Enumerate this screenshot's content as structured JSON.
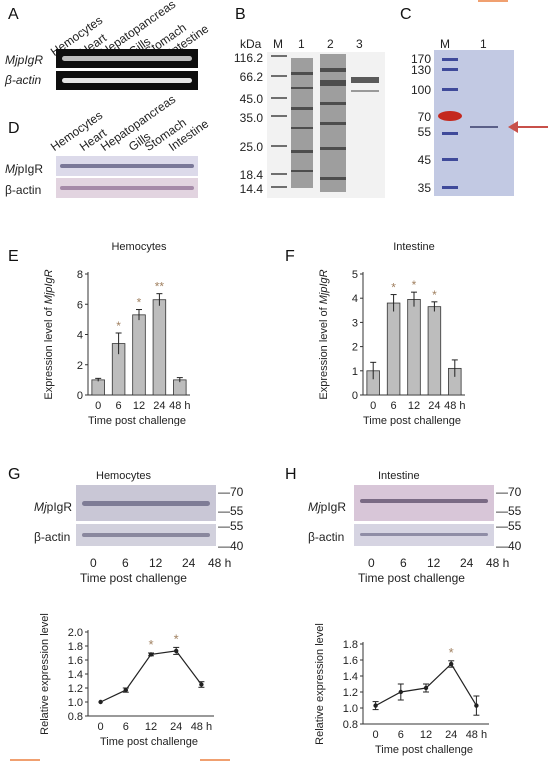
{
  "panel_labels": {
    "A": "A",
    "B": "B",
    "C": "C",
    "D": "D",
    "E": "E",
    "F": "F",
    "G": "G",
    "H": "H"
  },
  "tissues": [
    "Hemocytes",
    "Heart",
    "Hepatopancreas",
    "Gills",
    "Stomach",
    "Intestine"
  ],
  "gene": {
    "italic_prefix": "Mj",
    "name_rt": "pIgR",
    "name_wb": "pIgR",
    "actin": "β-actin"
  },
  "panelB": {
    "unit": "kDa",
    "lanes": [
      "M",
      "1",
      "2",
      "3"
    ],
    "markers": [
      "116.2",
      "66.2",
      "45.0",
      "35.0",
      "25.0",
      "18.4",
      "14.4"
    ]
  },
  "panelC": {
    "lanes": [
      "M",
      "1"
    ],
    "markers": [
      "170",
      "130",
      "100",
      "70",
      "55",
      "45",
      "35"
    ]
  },
  "timepoints": [
    "0",
    "6",
    "12",
    "24",
    "48 h"
  ],
  "xlabel": "Time post challenge",
  "wb_markers": {
    "top": [
      "70",
      "55"
    ],
    "bottom": [
      "55",
      "40"
    ]
  },
  "chart_data": [
    {
      "type": "bar",
      "panel": "E",
      "title": "Hemocytes",
      "categories": [
        "0",
        "6",
        "12",
        "24",
        "48 h"
      ],
      "values": [
        1.0,
        3.4,
        5.3,
        6.3,
        1.0
      ],
      "errors": [
        0.1,
        0.7,
        0.35,
        0.4,
        0.15
      ],
      "significance": [
        "",
        "*",
        "*",
        "**",
        ""
      ],
      "ylabel_prefix": "Expression level of ",
      "ylabel_gene": "MjpIgR",
      "xlabel": "Time post challenge",
      "ylim": [
        0,
        8
      ],
      "yticks": [
        "0",
        "2",
        "4",
        "6",
        "8"
      ]
    },
    {
      "type": "bar",
      "panel": "F",
      "title": "Intestine",
      "categories": [
        "0",
        "6",
        "12",
        "24",
        "48 h"
      ],
      "values": [
        1.0,
        3.8,
        3.95,
        3.65,
        1.1
      ],
      "errors": [
        0.35,
        0.35,
        0.3,
        0.2,
        0.35
      ],
      "significance": [
        "",
        "*",
        "*",
        "*",
        ""
      ],
      "ylabel_prefix": "Expression level of ",
      "ylabel_gene": "MjpIgR",
      "xlabel": "Time post challenge",
      "ylim": [
        0,
        5
      ],
      "yticks": [
        "0",
        "1",
        "2",
        "3",
        "4",
        "5"
      ]
    },
    {
      "type": "line",
      "panel": "G",
      "title": "Hemocytes",
      "categories": [
        "0",
        "6",
        "12",
        "24",
        "48 h"
      ],
      "values": [
        1.0,
        1.17,
        1.68,
        1.73,
        1.25
      ],
      "errors": [
        0.0,
        0.03,
        0.02,
        0.05,
        0.04
      ],
      "significance": [
        "",
        "",
        "*",
        "*",
        ""
      ],
      "ylabel": "Relative expression level",
      "xlabel": "Time post challenge",
      "ylim": [
        0.8,
        2.0
      ],
      "yticks": [
        "0.8",
        "1.0",
        "1.2",
        "1.4",
        "1.6",
        "1.8",
        "2.0"
      ]
    },
    {
      "type": "line",
      "panel": "H",
      "title": "Intestine",
      "categories": [
        "0",
        "6",
        "12",
        "24",
        "48 h"
      ],
      "values": [
        1.03,
        1.2,
        1.25,
        1.55,
        1.03
      ],
      "errors": [
        0.05,
        0.1,
        0.05,
        0.04,
        0.12
      ],
      "significance": [
        "",
        "",
        "",
        "*",
        ""
      ],
      "ylabel": "Relative expression level",
      "xlabel": "Time post challenge",
      "ylim": [
        0.8,
        1.8
      ],
      "yticks": [
        "0.8",
        "1.0",
        "1.2",
        "1.4",
        "1.6",
        "1.8"
      ]
    }
  ],
  "colors": {
    "bar_fill": "#bdbdbd",
    "star": "#a08060",
    "arrow": "#c8504a",
    "gel_dark": "#0e0e0e",
    "coomassie": "#bcc5e0",
    "wb": "#d8d4e8"
  }
}
